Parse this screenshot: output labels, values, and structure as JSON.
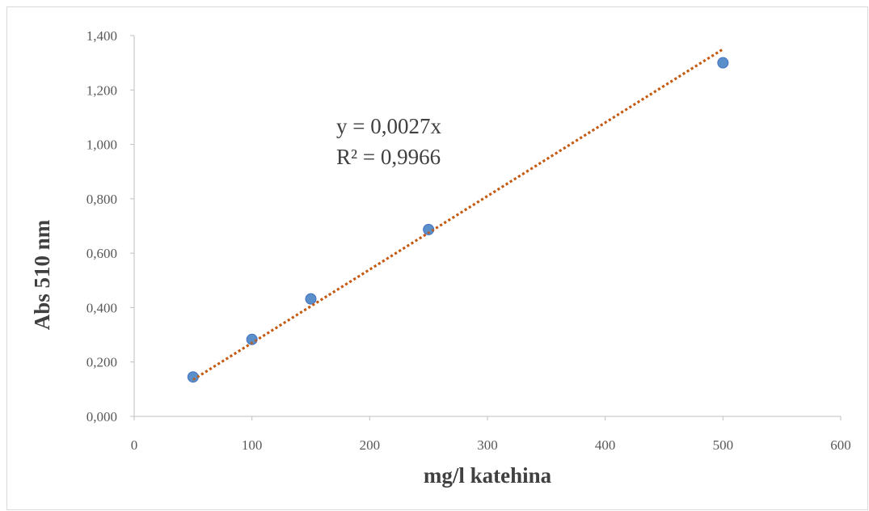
{
  "chart_data": {
    "type": "scatter",
    "xlabel": "mg/l katehina",
    "ylabel": "Abs 510 nm",
    "xlim": [
      0,
      600
    ],
    "ylim": [
      0,
      1.4
    ],
    "x_ticks": [
      "0",
      "100",
      "200",
      "300",
      "400",
      "500",
      "600"
    ],
    "y_ticks": [
      "0,000",
      "0,200",
      "0,400",
      "0,600",
      "0,800",
      "1,000",
      "1,200",
      "1,400"
    ],
    "grid": false,
    "series": [
      {
        "points": [
          {
            "x": 50,
            "y": 0.145
          },
          {
            "x": 100,
            "y": 0.283
          },
          {
            "x": 150,
            "y": 0.432
          },
          {
            "x": 250,
            "y": 0.687
          },
          {
            "x": 500,
            "y": 1.3
          }
        ],
        "marker_color": "#5b8fc9",
        "marker_edge": "#4472c4"
      }
    ],
    "trendline": {
      "type": "linear-through-origin",
      "slope": 0.0027,
      "x_range": [
        50,
        500
      ],
      "color": "#c55a11",
      "style": "dotted",
      "equation": "y = 0,0027x",
      "r_squared": "R² = 0,9966"
    },
    "axis_color": "#bfbfbf"
  }
}
